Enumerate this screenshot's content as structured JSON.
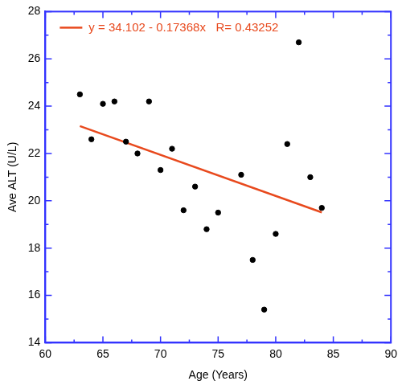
{
  "chart_data": {
    "type": "scatter",
    "x_label": "Age (Years)",
    "y_label": "Ave ALT (U/L)",
    "xlim": [
      60,
      90
    ],
    "xticks": [
      60,
      65,
      70,
      75,
      80,
      85,
      90
    ],
    "ylim": [
      14,
      28
    ],
    "yticks": [
      14,
      16,
      18,
      20,
      22,
      24,
      26,
      28
    ],
    "grid": false,
    "legend": "top-left",
    "series": [
      {
        "type": "scatter",
        "color": "#000000",
        "marker": "circle",
        "x": [
          63,
          64,
          65,
          66,
          67,
          68,
          69,
          70,
          71,
          72,
          73,
          74,
          75,
          77,
          78,
          79,
          80,
          81,
          82,
          83,
          84
        ],
        "values": [
          24.5,
          22.6,
          24.1,
          24.2,
          22.5,
          22.0,
          24.2,
          21.3,
          22.2,
          19.6,
          20.6,
          18.8,
          19.5,
          21.1,
          17.5,
          15.4,
          18.6,
          22.4,
          26.7,
          21.0,
          19.7
        ]
      },
      {
        "name": "y = 34.102 - 0.17368x   R= 0.43252",
        "type": "line",
        "color": "#e8491d",
        "line_style": "solid",
        "x": [
          63,
          84
        ],
        "values": [
          23.16,
          19.51
        ]
      }
    ]
  }
}
